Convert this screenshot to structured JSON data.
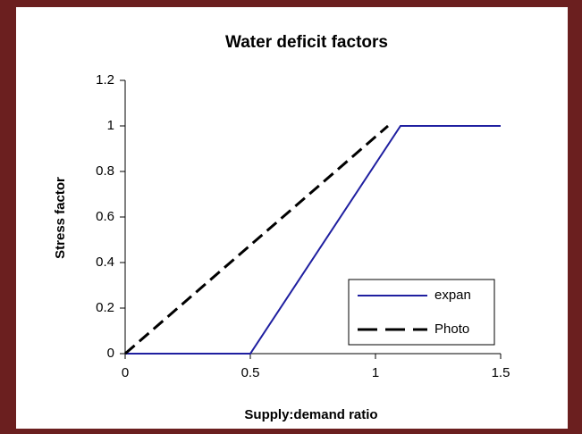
{
  "chart_data": {
    "type": "line",
    "title": "Water deficit factors",
    "x_label": "Supply:demand ratio",
    "y_label": "Stress factor",
    "xlim": [
      0,
      1.5
    ],
    "xticks": [
      0,
      0.5,
      1,
      1.5
    ],
    "ylim": [
      0,
      1.2
    ],
    "yticks": [
      0,
      0.2,
      0.4,
      0.6,
      0.8,
      1,
      1.2
    ],
    "legend": "bottom-right",
    "series": [
      {
        "name": "expan",
        "color": "#1f1fa0",
        "dash": "solid",
        "x": [
          0,
          0.5,
          1.1,
          1.5
        ],
        "values": [
          0,
          0,
          1,
          1
        ]
      },
      {
        "name": "Photo",
        "color": "#000000",
        "dash": "dashed",
        "x": [
          0,
          1.05
        ],
        "values": [
          0,
          1
        ]
      }
    ]
  }
}
